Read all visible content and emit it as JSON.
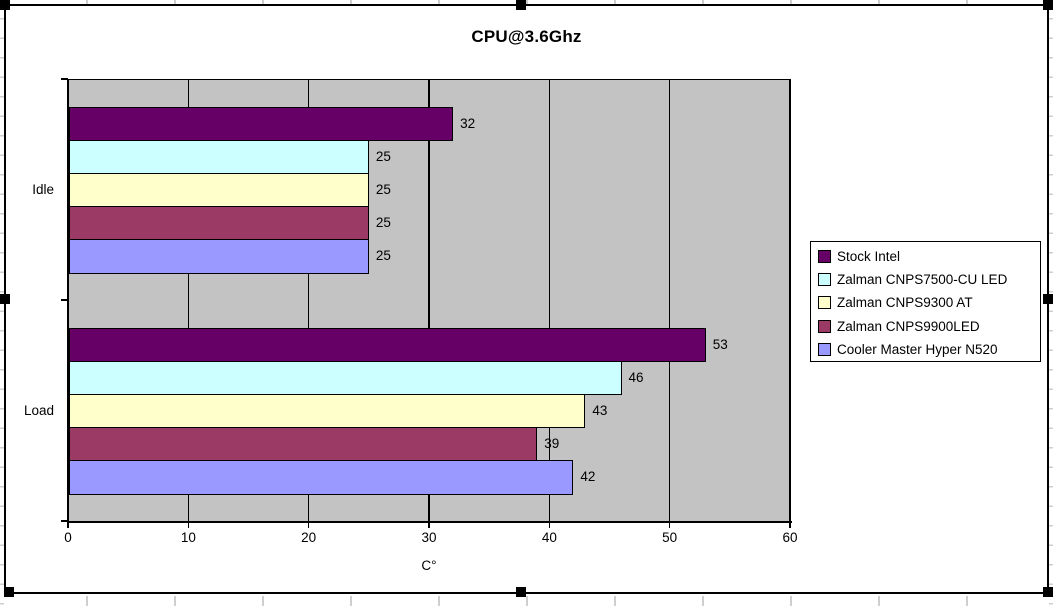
{
  "window": {
    "description_label": "Excel-style embedded bar chart, selected (sizing handles visible)"
  },
  "chart_data": {
    "type": "bar",
    "orientation": "horizontal",
    "title": "CPU@3.6Ghz",
    "xlabel": "C°",
    "categories": [
      "Idle",
      "Load"
    ],
    "series": [
      {
        "name": "Stock Intel",
        "color": "#660066",
        "values": [
          32,
          53
        ]
      },
      {
        "name": "Zalman CNPS7500-CU LED",
        "color": "#CCFFFF",
        "values": [
          25,
          46
        ]
      },
      {
        "name": "Zalman CNPS9300 AT",
        "color": "#FFFFCC",
        "values": [
          25,
          43
        ]
      },
      {
        "name": "Zalman CNPS9900LED",
        "color": "#9C3A66",
        "values": [
          25,
          39
        ]
      },
      {
        "name": "Cooler Master Hyper N520",
        "color": "#9999FF",
        "values": [
          25,
          42
        ]
      }
    ],
    "xlim": [
      0,
      60
    ],
    "x_ticks": [
      0,
      10,
      20,
      30,
      40,
      50,
      60
    ],
    "grid": true,
    "data_labels": true,
    "legend_position": "right",
    "plot_background": "#C3C3C3",
    "chart_background": "#FFFFFF",
    "bar_border_color": "#000000",
    "gridline_color": "#000000",
    "selection_handle_color": "#000000"
  }
}
